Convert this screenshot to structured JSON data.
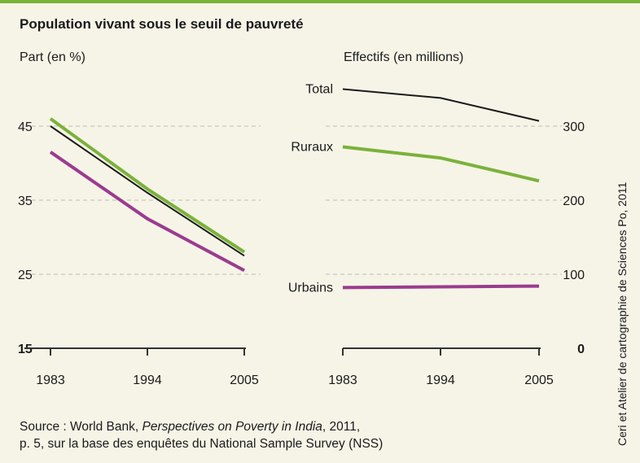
{
  "header": {
    "accent_color": "#7ab23a"
  },
  "title": "Population vivant sous le seuil de pauvreté",
  "credit": "Ceri et Atelier de cartographie de Sciences Po, 2011",
  "source": {
    "line1_prefix": "Source : World Bank, ",
    "line1_title": "Perspectives on Poverty in India",
    "line1_suffix": ", 2011,",
    "line2": "p. 5, sur la base des enquêtes du National Sample Survey (NSS)"
  },
  "chart_data": [
    {
      "type": "line",
      "ylabel": "Part (en %)",
      "x": [
        "1983",
        "1994",
        "2005"
      ],
      "ylim": [
        15,
        50
      ],
      "yticks": [
        "45",
        "35",
        "25",
        "15"
      ],
      "series": [
        {
          "key": "rural",
          "color": "#7ab23a",
          "values": [
            46,
            36.5,
            28
          ]
        },
        {
          "key": "total",
          "color": "#1a1a1a",
          "values": [
            45,
            36,
            27.5
          ]
        },
        {
          "key": "urban",
          "color": "#9b3b8f",
          "values": [
            41.5,
            32.5,
            25.5
          ]
        }
      ]
    },
    {
      "type": "line",
      "ylabel": "Effectifs (en millions)",
      "x": [
        "1983",
        "1994",
        "2005"
      ],
      "ylim": [
        0,
        350
      ],
      "yticks": [
        "300",
        "200",
        "100",
        "0"
      ],
      "series": [
        {
          "name": "Total",
          "color": "#1a1a1a",
          "values": [
            350,
            338,
            307
          ]
        },
        {
          "name": "Ruraux",
          "color": "#7ab23a",
          "values": [
            272,
            257,
            226
          ]
        },
        {
          "name": "Urbains",
          "color": "#9b3b8f",
          "values": [
            82,
            83,
            84
          ]
        }
      ]
    }
  ]
}
